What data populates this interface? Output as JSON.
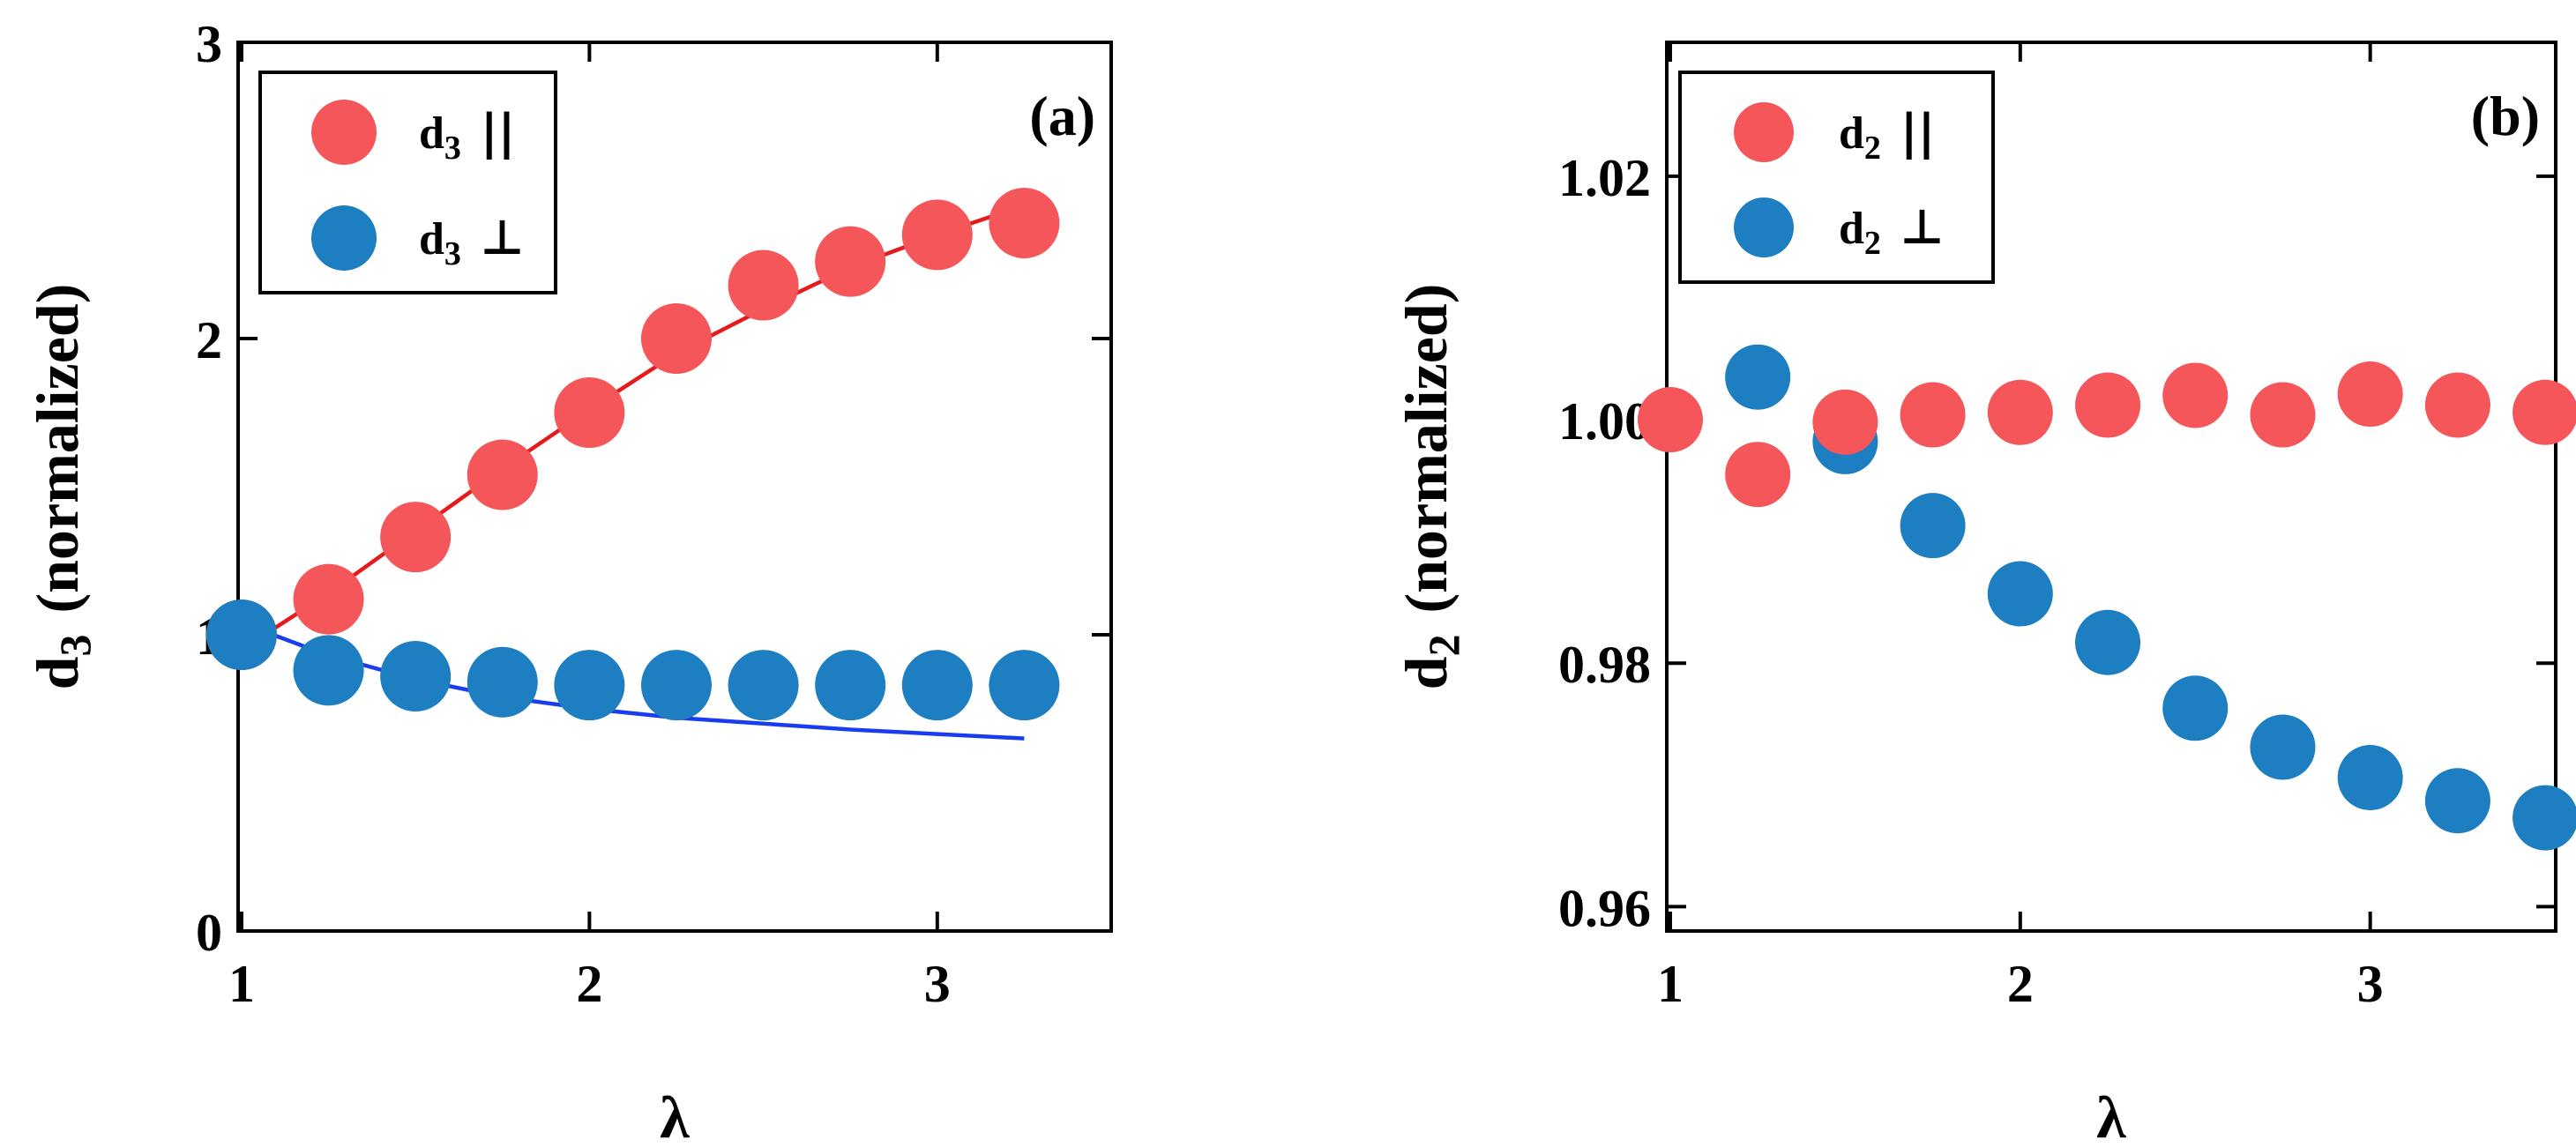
{
  "chart_data": [
    {
      "type": "scatter",
      "panel_label": "(a)",
      "xlabel": "λ",
      "ylabel_main": "d",
      "ylabel_sub": "3",
      "ylabel_rest": "(normalized)",
      "xlim": [
        0.99,
        3.5
      ],
      "ylim": [
        0,
        3
      ],
      "xticks": [
        1,
        2,
        3
      ],
      "yticks": [
        0,
        1,
        2,
        3
      ],
      "xtick_labels": [
        "1",
        "2",
        "3"
      ],
      "ytick_labels": [
        "0",
        "1",
        "2",
        "3"
      ],
      "legend_position": "top-left",
      "series": [
        {
          "name": "d3 ||",
          "legend_main": "d",
          "legend_sub": "3",
          "legend_symbol": "||",
          "color": "#f4565a",
          "x": [
            1.0,
            1.25,
            1.5,
            1.75,
            2.0,
            2.25,
            2.5,
            2.75,
            3.0,
            3.25
          ],
          "y": [
            1.0,
            1.12,
            1.33,
            1.54,
            1.75,
            2.0,
            2.18,
            2.26,
            2.35,
            2.39
          ]
        },
        {
          "name": "d3 ⊥",
          "legend_main": "d",
          "legend_sub": "3",
          "legend_symbol": "⊥",
          "color": "#1d7ec2",
          "x": [
            1.0,
            1.25,
            1.5,
            1.75,
            2.0,
            2.25,
            2.5,
            2.75,
            3.0,
            3.25
          ],
          "y": [
            1.0,
            0.88,
            0.86,
            0.84,
            0.83,
            0.83,
            0.83,
            0.83,
            0.83,
            0.83
          ]
        }
      ],
      "fits": [
        {
          "name": "fit d3 ||",
          "color": "#e41a1c",
          "x": [
            1.0,
            1.25,
            1.5,
            1.75,
            2.0,
            2.25,
            2.5,
            2.75,
            3.0,
            3.25
          ],
          "y": [
            0.95,
            1.14,
            1.35,
            1.56,
            1.76,
            1.95,
            2.1,
            2.24,
            2.35,
            2.45
          ]
        },
        {
          "name": "fit d3 ⊥",
          "color": "#1a3cf0",
          "x": [
            1.0,
            1.25,
            1.5,
            1.75,
            2.0,
            2.25,
            2.5,
            2.75,
            3.0,
            3.25
          ],
          "y": [
            1.04,
            0.93,
            0.85,
            0.79,
            0.75,
            0.72,
            0.7,
            0.68,
            0.665,
            0.65
          ]
        }
      ]
    },
    {
      "type": "scatter",
      "panel_label": "(b)",
      "xlabel": "λ",
      "ylabel_main": "d",
      "ylabel_sub": "2",
      "ylabel_rest": "(normalized)",
      "xlim": [
        0.99,
        3.53
      ],
      "ylim": [
        0.958,
        1.031
      ],
      "xticks": [
        1,
        2,
        3
      ],
      "yticks": [
        0.96,
        0.98,
        1.0,
        1.02
      ],
      "xtick_labels": [
        "1",
        "2",
        "3"
      ],
      "ytick_labels": [
        "0.96",
        "0.98",
        "1.00",
        "1.02"
      ],
      "legend_position": "top-left",
      "series": [
        {
          "name": "d2 ⊥",
          "legend_main": "d",
          "legend_sub": "2",
          "legend_symbol": "⊥",
          "color": "#1d7ec2",
          "x": [
            1.25,
            1.5,
            1.75,
            2.0,
            2.25,
            2.5,
            2.75,
            3.0,
            3.25,
            3.5
          ],
          "y": [
            1.0035,
            0.9982,
            0.9913,
            0.9857,
            0.9817,
            0.9763,
            0.9731,
            0.9706,
            0.9687,
            0.9673
          ]
        },
        {
          "name": "d2 ||",
          "legend_main": "d",
          "legend_sub": "2",
          "legend_symbol": "||",
          "color": "#f4565a",
          "x": [
            1.0,
            1.25,
            1.5,
            1.75,
            2.0,
            2.25,
            2.5,
            2.75,
            3.0,
            3.25,
            3.5
          ],
          "y": [
            1.0,
            0.9955,
            0.9998,
            1.0004,
            1.0006,
            1.0012,
            1.002,
            1.0004,
            1.0021,
            1.0012,
            1.0006
          ]
        }
      ]
    }
  ]
}
